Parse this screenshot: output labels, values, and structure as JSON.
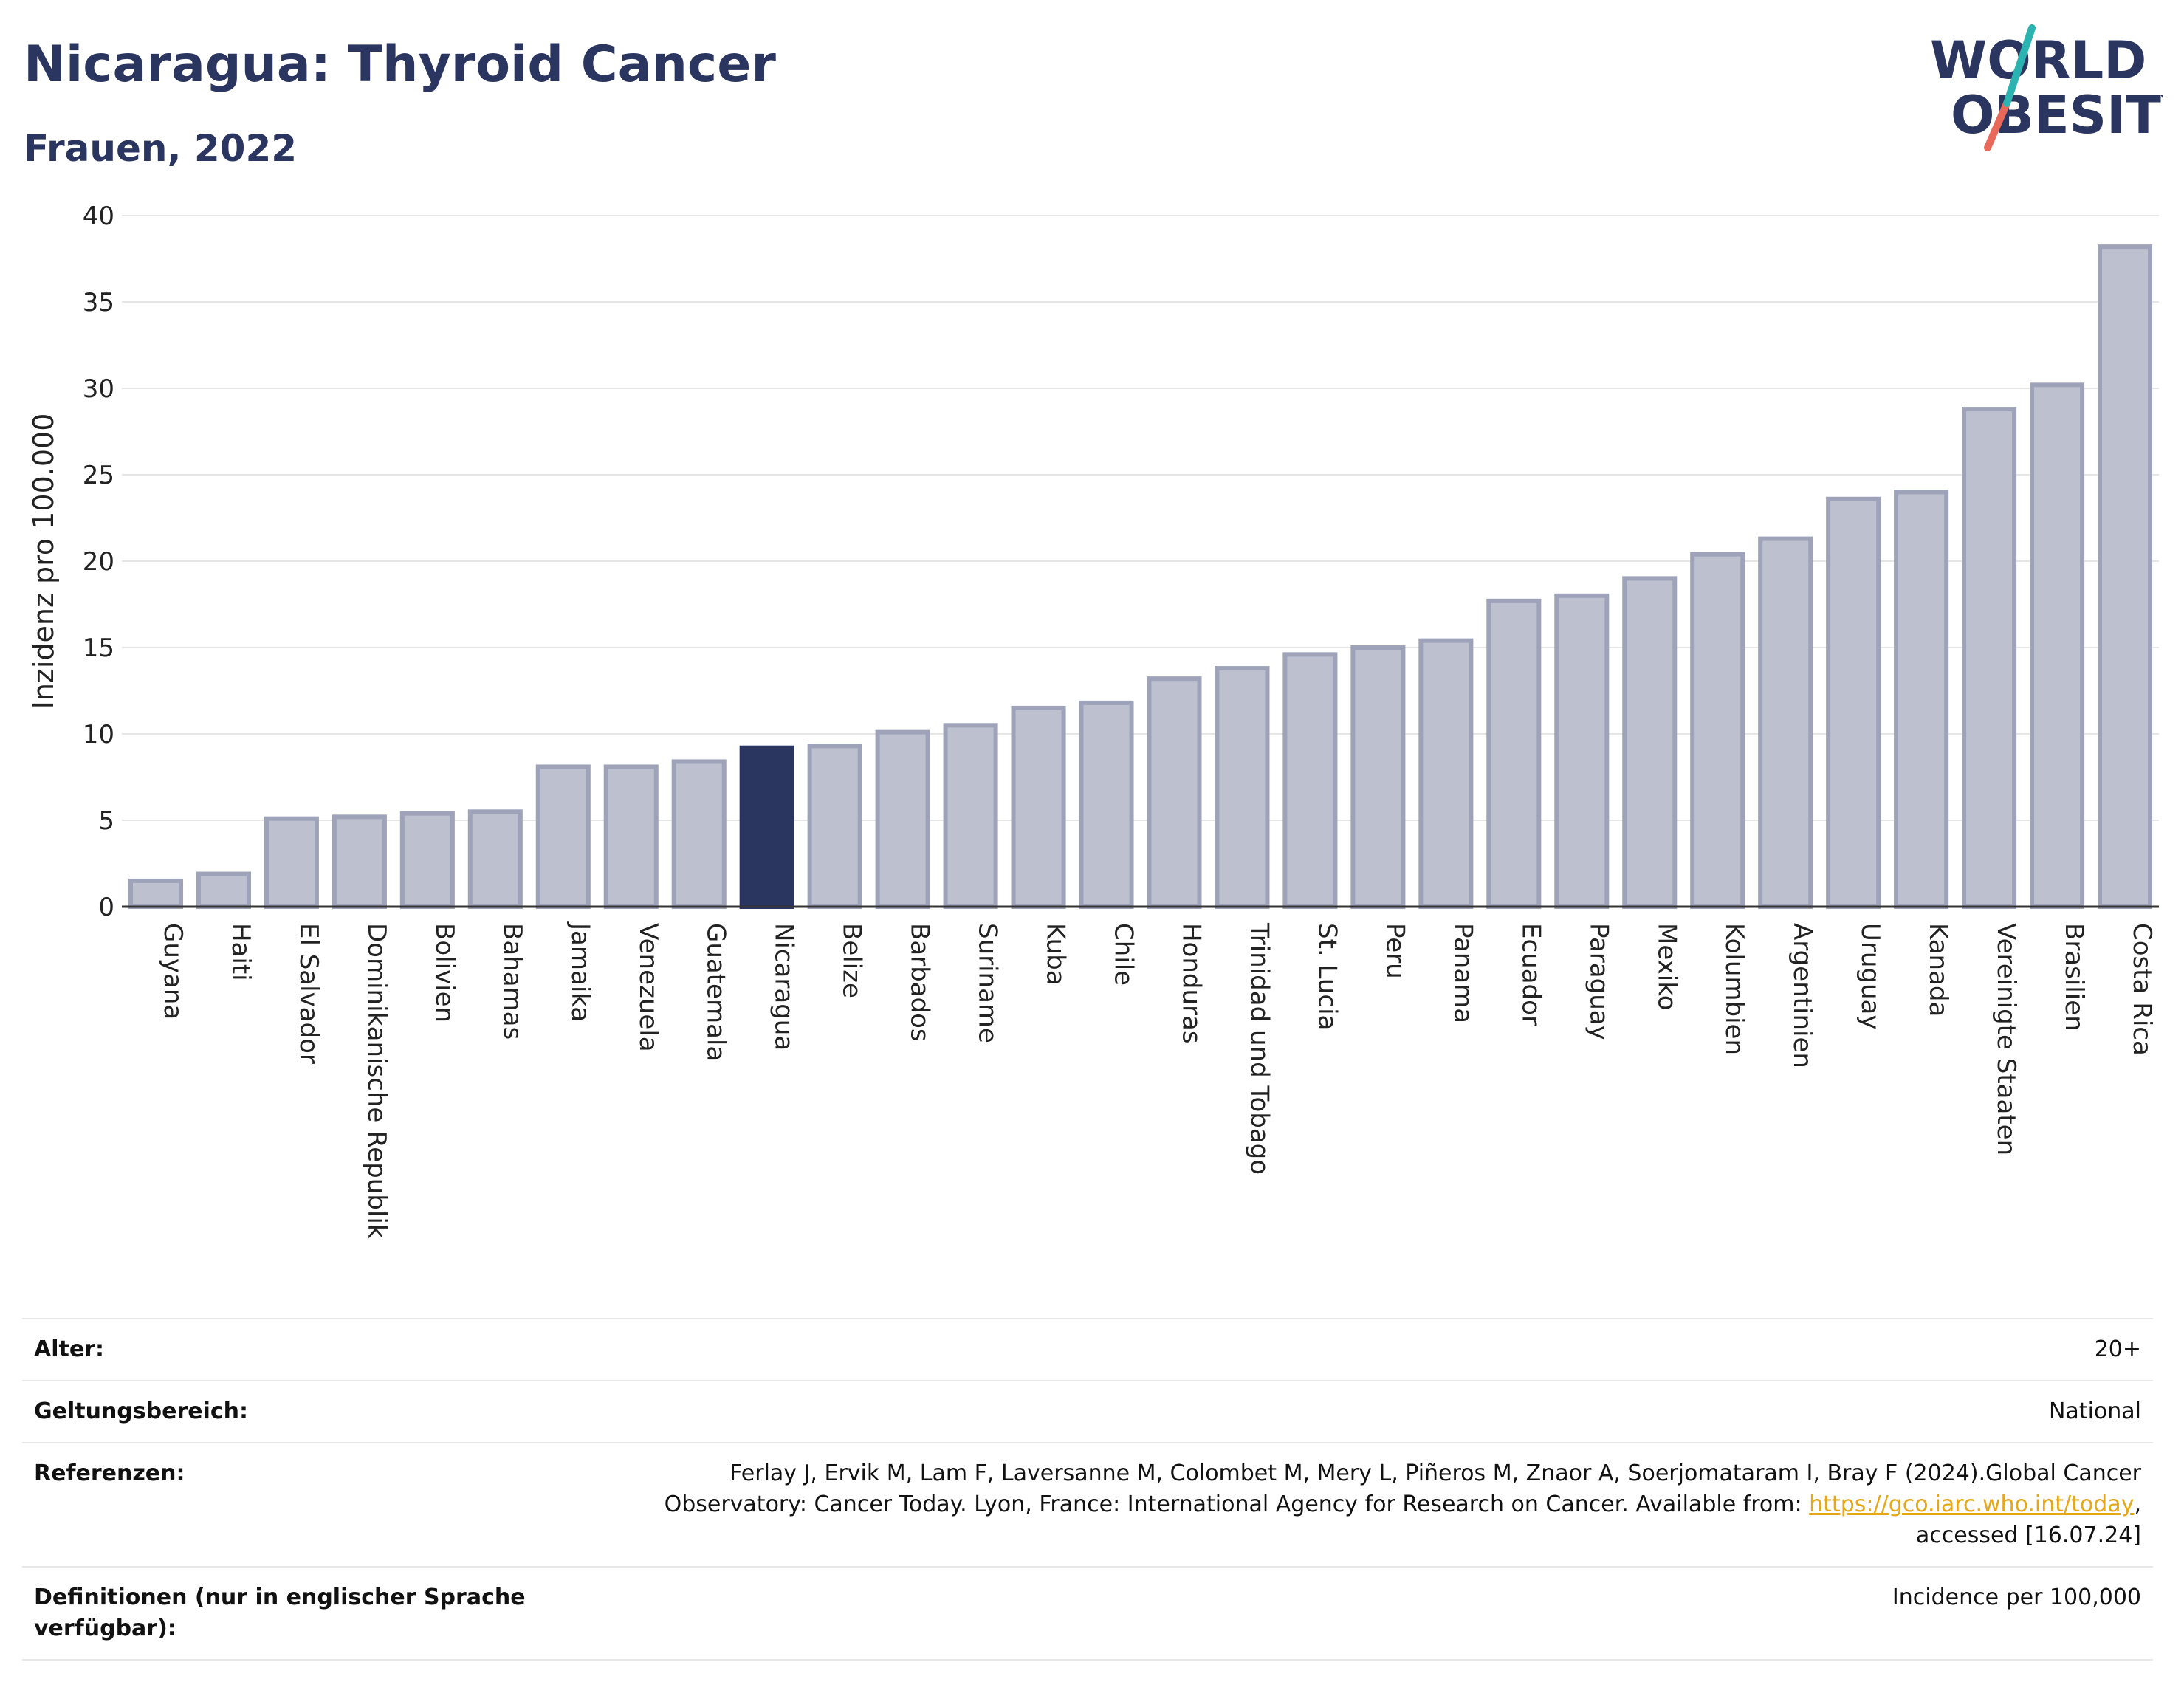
{
  "header": {
    "title": "Nicaragua: Thyroid Cancer",
    "subtitle": "Frauen, 2022"
  },
  "logo": {
    "line1": "WORLD",
    "line2": "OBESITY",
    "colors": {
      "text": "#2a3560",
      "slash_top": "#2bb3b1",
      "slash_bottom": "#e8685a"
    }
  },
  "chart_data": {
    "type": "bar",
    "ylabel": "Inzidenz pro 100.000",
    "ylim": [
      0,
      40
    ],
    "yticks": [
      0,
      5,
      10,
      15,
      20,
      25,
      30,
      35,
      40
    ],
    "grid": true,
    "highlight": "Nicaragua",
    "colors": {
      "bar": "#bcc0cf",
      "bar_edge": "#9ea3ba",
      "highlight": "#2a3560"
    },
    "categories": [
      "Guyana",
      "Haiti",
      "El Salvador",
      "Dominikanische Republik",
      "Bolivien",
      "Bahamas",
      "Jamaika",
      "Venezuela",
      "Guatemala",
      "Nicaragua",
      "Belize",
      "Barbados",
      "Suriname",
      "Kuba",
      "Chile",
      "Honduras",
      "Trinidad und Tobago",
      "St. Lucia",
      "Peru",
      "Panama",
      "Ecuador",
      "Paraguay",
      "Mexiko",
      "Kolumbien",
      "Argentinien",
      "Uruguay",
      "Kanada",
      "Vereinigte Staaten",
      "Brasilien",
      "Costa Rica"
    ],
    "values": [
      1.5,
      1.9,
      5.1,
      5.2,
      5.4,
      5.5,
      8.1,
      8.1,
      8.4,
      9.2,
      9.3,
      10.1,
      10.5,
      11.5,
      11.8,
      13.2,
      13.8,
      14.6,
      15.0,
      15.4,
      17.7,
      18.0,
      19.0,
      20.4,
      21.3,
      23.6,
      24.0,
      28.8,
      30.2,
      38.2
    ]
  },
  "meta": {
    "rows": [
      {
        "label": "Alter:",
        "value": "20+"
      },
      {
        "label": "Geltungsbereich:",
        "value": "National"
      },
      {
        "label": "Referenzen:",
        "value_pre": "Ferlay J, Ervik M, Lam F, Laversanne M, Colombet M, Mery L, Piñeros M, Znaor A, Soerjomataram I, Bray F (2024).Global Cancer Observatory: Cancer Today. Lyon, France: International Agency for Research on Cancer. Available from: ",
        "link": "https://gco.iarc.who.int/today",
        "value_post": ", accessed [16.07.24]"
      },
      {
        "label": "Definitionen (nur in englischer Sprache verfügbar):",
        "value": "Incidence per 100,000"
      }
    ]
  }
}
